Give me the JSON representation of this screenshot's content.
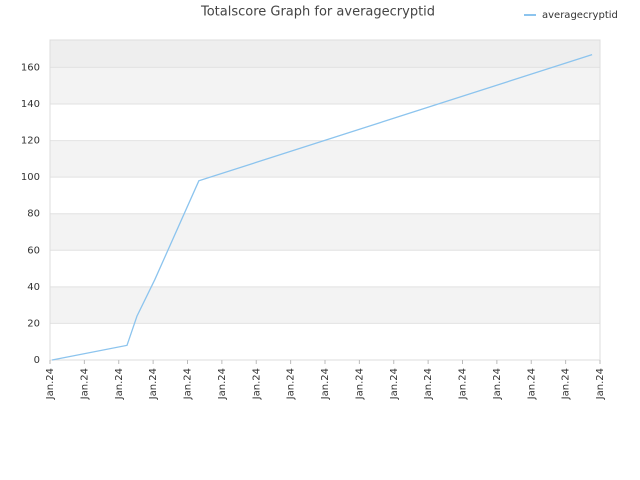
{
  "chart_data": {
    "type": "line",
    "title": "Totalscore Graph for averagecryptid",
    "x": [
      0.06,
      2.24,
      2.53,
      3.05,
      4.33,
      15.77
    ],
    "series": [
      {
        "name": "averagecryptid",
        "color": "#8cc4ee",
        "values": [
          0,
          8,
          24,
          44,
          98,
          167
        ]
      }
    ],
    "xlim": [
      0,
      16
    ],
    "xticks": [
      {
        "value": 0,
        "label": "Jan.24"
      },
      {
        "value": 1,
        "label": "Jan.24"
      },
      {
        "value": 2,
        "label": "Jan.24"
      },
      {
        "value": 3,
        "label": "Jan.24"
      },
      {
        "value": 4,
        "label": "Jan.24"
      },
      {
        "value": 5,
        "label": "Jan.24"
      },
      {
        "value": 6,
        "label": "Jan.24"
      },
      {
        "value": 7,
        "label": "Jan.24"
      },
      {
        "value": 8,
        "label": "Jan.24"
      },
      {
        "value": 9,
        "label": "Jan.24"
      },
      {
        "value": 10,
        "label": "Jan.24"
      },
      {
        "value": 11,
        "label": "Jan.24"
      },
      {
        "value": 12,
        "label": "Jan.24"
      },
      {
        "value": 13,
        "label": "Jan.24"
      },
      {
        "value": 14,
        "label": "Jan.24"
      },
      {
        "value": 15,
        "label": "Jan.24"
      },
      {
        "value": 16,
        "label": "Jan.24"
      }
    ],
    "ylim": [
      0,
      175
    ],
    "yticks": [
      0,
      20,
      40,
      60,
      80,
      100,
      120,
      140,
      160
    ],
    "grid": true,
    "legend": "top-right"
  }
}
